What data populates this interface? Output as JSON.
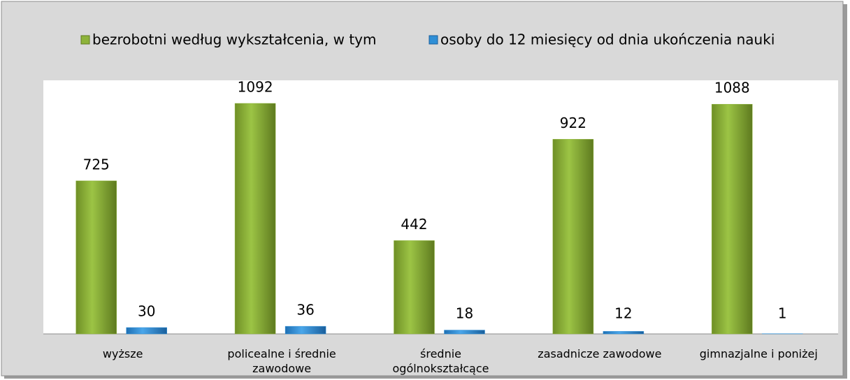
{
  "chart_data": {
    "type": "bar",
    "categories": [
      "wyższe",
      "policealne i średnie zawodowe",
      "średnie ogólnokształcące",
      "zasadnicze zawodowe",
      "gimnazjalne i poniżej"
    ],
    "series": [
      {
        "name": "bezrobotni według wykształcenia, w tym",
        "color": "#8db33a",
        "values": [
          725,
          1092,
          442,
          922,
          1088
        ]
      },
      {
        "name": "osoby do 12 miesięcy od dnia ukończenia nauki",
        "color": "#2f8fd6",
        "values": [
          30,
          36,
          18,
          12,
          1
        ]
      }
    ],
    "legend": "top"
  }
}
